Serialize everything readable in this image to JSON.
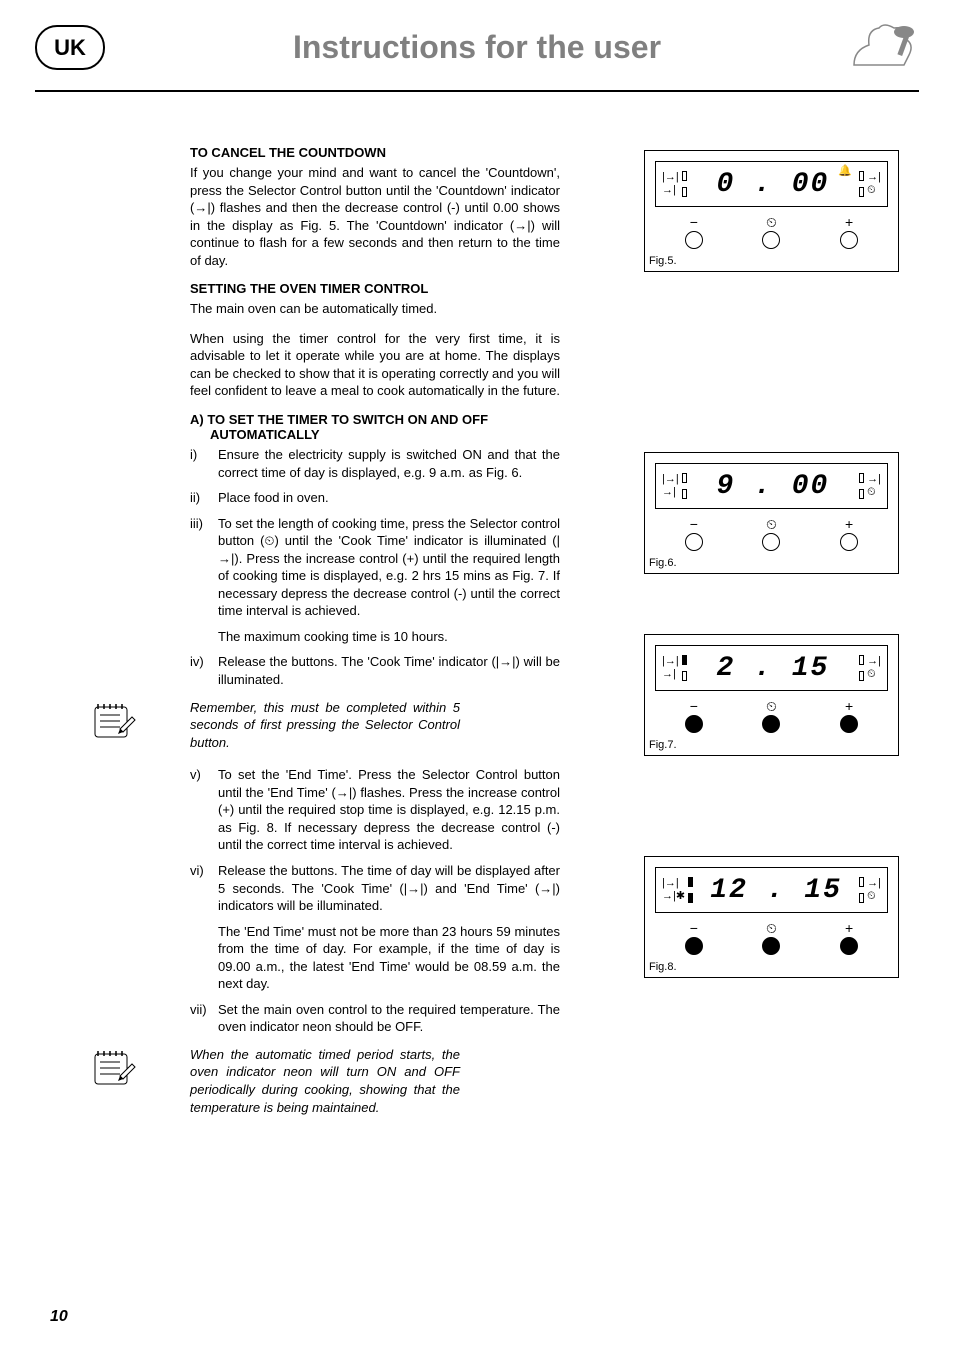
{
  "header": {
    "badge": "UK",
    "title": "Instructions for the user"
  },
  "section1": {
    "heading": "TO CANCEL THE COUNTDOWN",
    "para": "If you change your mind and want to cancel the 'Countdown', press the Selector Control button until the 'Countdown' indicator (→|) flashes and then the decrease control (-) until 0.00 shows in the display as Fig. 5. The 'Countdown' indicator (→|) will continue to flash for a few seconds and then return to the time of day."
  },
  "section2": {
    "heading": "SETTING THE OVEN TIMER CONTROL",
    "para1": "The main oven can be automatically timed.",
    "para2": "When using the timer control for the very first time, it is advisable to let it operate while you are at home. The displays can be checked to show that it is operating correctly and you will feel confident to leave a meal to cook automatically in the future."
  },
  "sectionA": {
    "heading": "A) TO SET THE TIMER TO SWITCH ON AND OFF AUTOMATICALLY",
    "items": [
      {
        "num": "i)",
        "text": "Ensure the electricity supply is switched ON and that the correct time of day is displayed, e.g. 9 a.m. as Fig. 6."
      },
      {
        "num": "ii)",
        "text": "Place food in oven."
      },
      {
        "num": "iii)",
        "text": "To set the length of cooking time, press the Selector control button (⏲) until the 'Cook Time' indicator is illuminated (|→|). Press the increase control (+) until the required length of cooking time is displayed, e.g. 2 hrs 15 mins as Fig. 7. If necessary depress the decrease control (-) until the correct time interval is achieved."
      }
    ],
    "sub_text": "The maximum cooking time is 10 hours.",
    "item_iv": {
      "num": "iv)",
      "text": "Release the buttons. The 'Cook Time' indicator (|→|) will be illuminated."
    }
  },
  "note1": "Remember, this must be completed within 5 seconds of first pressing the Selector Control button.",
  "sectionB": {
    "item_v": {
      "num": "v)",
      "text": "To set the 'End Time'. Press the Selector Control button until the 'End Time' (→|) flashes. Press the increase control (+) until the required stop time is displayed, e.g. 12.15 p.m. as Fig. 8. If necessary depress the decrease control (-) until the correct time interval is achieved."
    },
    "item_vi": {
      "num": "vi)",
      "text": "Release the buttons. The time of day will be displayed after 5 seconds. The 'Cook Time' (|→|) and 'End Time' (→|) indicators will be illuminated."
    },
    "sub_vi": "The 'End Time' must not be more than 23 hours 59 minutes from the time of day. For example, if the time of day is 09.00 a.m., the latest 'End Time' would be 08.59 a.m. the next day.",
    "item_vii": {
      "num": "vii)",
      "text": "Set the main oven control to the required temperature. The oven indicator neon should be OFF."
    }
  },
  "note2": "When the automatic timed period starts, the oven indicator neon will turn ON and OFF periodically during cooking, showing that the temperature is being maintained.",
  "figures": [
    {
      "label": "Fig.5.",
      "digits": "0 . 00",
      "filled_buttons": false,
      "left_fill": [
        false,
        false
      ],
      "right_fill": [
        false,
        false
      ],
      "bell": true
    },
    {
      "label": "Fig.6.",
      "digits": "9 . 00",
      "filled_buttons": false,
      "left_fill": [
        false,
        false
      ],
      "right_fill": [
        false,
        false
      ],
      "bell": false
    },
    {
      "label": "Fig.7.",
      "digits": "2 .  15",
      "filled_buttons": true,
      "left_fill": [
        true,
        false
      ],
      "right_fill": [
        false,
        false
      ],
      "bell": false
    },
    {
      "label": "Fig.8.",
      "digits": "12 .  15",
      "filled_buttons": true,
      "left_fill": [
        true,
        true
      ],
      "right_fill": [
        false,
        false
      ],
      "bell": false,
      "end_time_flash": true
    }
  ],
  "page_number": "10",
  "colors": {
    "text": "#000000",
    "header_title": "#808080",
    "background": "#ffffff"
  }
}
